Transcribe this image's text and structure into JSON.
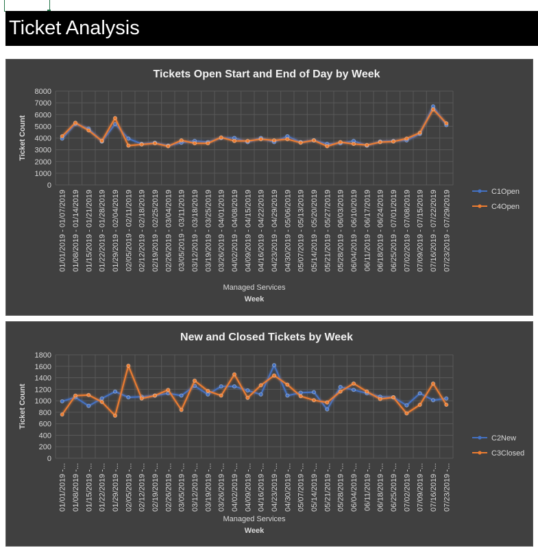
{
  "sheet": {
    "title": "Ticket Analysis"
  },
  "colors": {
    "blue": "#4472C4",
    "orange": "#ED7D31"
  },
  "chart_data": [
    {
      "type": "line",
      "title": "Tickets Open Start and End of Day by Week",
      "ylabel": "Ticket Count",
      "xlabel_top": "Managed Services",
      "xlabel": "Week",
      "ylim": [
        0,
        8000
      ],
      "yticks": [
        0,
        1000,
        2000,
        3000,
        4000,
        5000,
        6000,
        7000,
        8000
      ],
      "legend_position": "right",
      "categories": [
        "01/01/2019 - 01/07/2019",
        "01/08/2019 - 01/14/2019",
        "01/15/2019 - 01/21/2019",
        "01/22/2019 - 01/28/2019",
        "01/29/2019 - 02/04/2019",
        "02/05/2019 - 02/11/2019",
        "02/12/2019 - 02/18/2019",
        "02/19/2019 - 02/25/2019",
        "02/26/2019 - 03/04/2019",
        "03/05/2019 - 03/11/2019",
        "03/12/2019 - 03/18/2019",
        "03/19/2019 - 03/25/2019",
        "03/26/2019 - 04/01/2019",
        "04/02/2019 - 04/08/2019",
        "04/09/2019 - 04/15/2019",
        "04/16/2019 - 04/22/2019",
        "04/23/2019 - 04/29/2019",
        "04/30/2019 - 05/06/2019",
        "05/07/2019 - 05/13/2019",
        "05/14/2019 - 05/20/2019",
        "05/21/2019 - 05/27/2019",
        "05/28/2019 - 06/03/2019",
        "06/04/2019 - 06/10/2019",
        "06/11/2019 - 06/17/2019",
        "06/18/2019 - 06/24/2019",
        "06/25/2019 - 07/01/2019",
        "07/02/2019 - 07/08/2019",
        "07/09/2019 - 07/15/2019",
        "07/16/2019 - 07/22/2019",
        "07/23/2019 - 07/29/2019"
      ],
      "series": [
        {
          "name": "C1Open",
          "color": "#4472C4",
          "values": [
            3950,
            5200,
            4800,
            3700,
            5200,
            3950,
            3500,
            3600,
            3350,
            3600,
            3750,
            3650,
            4000,
            4000,
            3650,
            4000,
            3650,
            4150,
            3650,
            3800,
            3500,
            3550,
            3750,
            3350,
            3700,
            3750,
            3800,
            4350,
            6700,
            5100
          ]
        },
        {
          "name": "C4Open",
          "color": "#ED7D31",
          "values": [
            4150,
            5300,
            4650,
            3750,
            5700,
            3350,
            3450,
            3550,
            3300,
            3800,
            3550,
            3550,
            4050,
            3750,
            3750,
            3900,
            3800,
            3900,
            3600,
            3800,
            3300,
            3650,
            3500,
            3400,
            3650,
            3700,
            3950,
            4450,
            6450,
            5250
          ]
        }
      ]
    },
    {
      "type": "line",
      "title": "New and Closed Tickets by Week",
      "ylabel": "Ticket Count",
      "xlabel_top": "Managed Services",
      "xlabel": "Week",
      "ylim": [
        0,
        1800
      ],
      "yticks": [
        0,
        200,
        400,
        600,
        800,
        1000,
        1200,
        1400,
        1600,
        1800
      ],
      "legend_position": "right",
      "categories": [
        "01/01/2019 -...",
        "01/08/2019 -...",
        "01/15/2019 -...",
        "01/22/2019 -...",
        "01/29/2019 -...",
        "02/05/2019 -...",
        "02/12/2019 -...",
        "02/19/2019 -...",
        "02/26/2019 -...",
        "03/05/2019 -...",
        "03/12/2019 -...",
        "03/19/2019 -...",
        "03/26/2019 -...",
        "04/02/2019 -...",
        "04/09/2019 -...",
        "04/16/2019 -...",
        "04/23/2019 -...",
        "04/30/2019 -...",
        "05/07/2019 -...",
        "05/14/2019 -...",
        "05/21/2019 -...",
        "05/28/2019 -...",
        "06/04/2019 -...",
        "06/11/2019 -...",
        "06/18/2019 -...",
        "06/25/2019 -...",
        "07/02/2019 -...",
        "07/09/2019 -...",
        "07/16/2019 -...",
        "07/23/2019 -..."
      ],
      "series": [
        {
          "name": "C2New",
          "color": "#4472C4",
          "values": [
            990,
            1060,
            910,
            1040,
            1160,
            1060,
            1070,
            1090,
            1130,
            1090,
            1260,
            1110,
            1250,
            1250,
            1180,
            1110,
            1620,
            1090,
            1140,
            1150,
            850,
            1240,
            1190,
            1130,
            1070,
            1060,
            920,
            1130,
            1010,
            1040
          ]
        },
        {
          "name": "C3Closed",
          "color": "#ED7D31",
          "values": [
            760,
            1090,
            1100,
            980,
            740,
            1610,
            1040,
            1090,
            1190,
            840,
            1350,
            1170,
            1090,
            1460,
            1050,
            1270,
            1440,
            1280,
            1080,
            1010,
            970,
            1160,
            1300,
            1160,
            1030,
            1060,
            780,
            930,
            1300,
            930
          ]
        }
      ]
    }
  ]
}
